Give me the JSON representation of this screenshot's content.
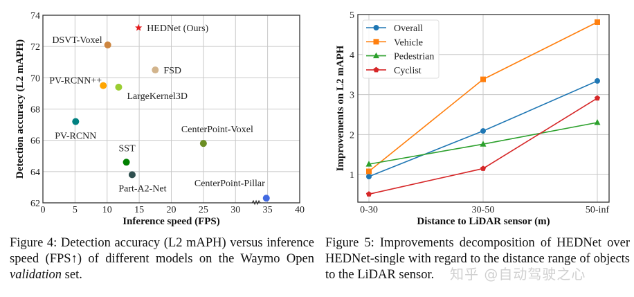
{
  "chart_data": [
    {
      "type": "scatter",
      "xlabel": "Inference speed (FPS)",
      "ylabel": "Detection accuracy (L2 mAPH)",
      "xlim": [
        0,
        40
      ],
      "ylim": [
        62,
        74
      ],
      "xticks": [
        "0",
        "5",
        "10",
        "15",
        "20",
        "25",
        "30",
        "35",
        "40"
      ],
      "yticks": [
        "62",
        "64",
        "66",
        "68",
        "70",
        "72",
        "74"
      ],
      "grid": true,
      "axis_break_near_x": 33,
      "points": [
        {
          "name": "HEDNet (Ours)",
          "x": 14.9,
          "y": 73.2,
          "color": "#e41a1c",
          "marker": "star"
        },
        {
          "name": "DSVT-Voxel",
          "x": 10.1,
          "y": 72.1,
          "color": "#cd853f",
          "marker": "circle"
        },
        {
          "name": "FSD",
          "x": 17.5,
          "y": 70.5,
          "color": "#d2b48c",
          "marker": "circle"
        },
        {
          "name": "PV-RCNN++",
          "x": 9.4,
          "y": 69.5,
          "color": "#ffa500",
          "marker": "circle"
        },
        {
          "name": "LargeKernel3D",
          "x": 11.8,
          "y": 69.4,
          "color": "#9acd32",
          "marker": "circle"
        },
        {
          "name": "PV-RCNN",
          "x": 5.1,
          "y": 67.2,
          "color": "#008080",
          "marker": "circle"
        },
        {
          "name": "CenterPoint-Voxel",
          "x": 25.0,
          "y": 65.8,
          "color": "#6b8e23",
          "marker": "circle"
        },
        {
          "name": "SST",
          "x": 13.0,
          "y": 64.6,
          "color": "#008000",
          "marker": "circle"
        },
        {
          "name": "Part-A2-Net",
          "x": 13.9,
          "y": 63.8,
          "color": "#2f4f4f",
          "marker": "circle"
        },
        {
          "name": "CenterPoint-Pillar",
          "x": 34.8,
          "y": 62.3,
          "color": "#4169e1",
          "marker": "circle"
        }
      ]
    },
    {
      "type": "line",
      "xlabel": "Distance to LiDAR sensor (m)",
      "ylabel": "Improvements on L2 mAPH",
      "categories": [
        "0-30",
        "30-50",
        "50-inf"
      ],
      "ylim": [
        0.31,
        5
      ],
      "yticks": [
        "1",
        "2",
        "3",
        "4",
        "5"
      ],
      "grid": true,
      "legend": "top-left",
      "series": [
        {
          "name": "Overall",
          "values": [
            0.95,
            2.09,
            3.34
          ],
          "color": "#1f77b4",
          "marker": "circle"
        },
        {
          "name": "Vehicle",
          "values": [
            1.08,
            3.38,
            4.81
          ],
          "color": "#ff7f0e",
          "marker": "square"
        },
        {
          "name": "Pedestrian",
          "values": [
            1.26,
            1.76,
            2.3
          ],
          "color": "#2ca02c",
          "marker": "triangle"
        },
        {
          "name": "Cyclist",
          "values": [
            0.51,
            1.15,
            2.91
          ],
          "color": "#d62728",
          "marker": "pentagon"
        }
      ]
    }
  ],
  "captions": {
    "fig4": {
      "prefix": "Figure 4: Detection accuracy (L2 mAPH) versus inference speed (FPS↑) of different models on the Waymo Open ",
      "italic": "validation",
      "suffix": " set."
    },
    "fig5": "Figure 5: Improvements decomposition of HEDNet over HEDNet-single with regard to the distance range of objects to the LiDAR sensor."
  },
  "watermark": "知乎 @自动驾驶之心"
}
